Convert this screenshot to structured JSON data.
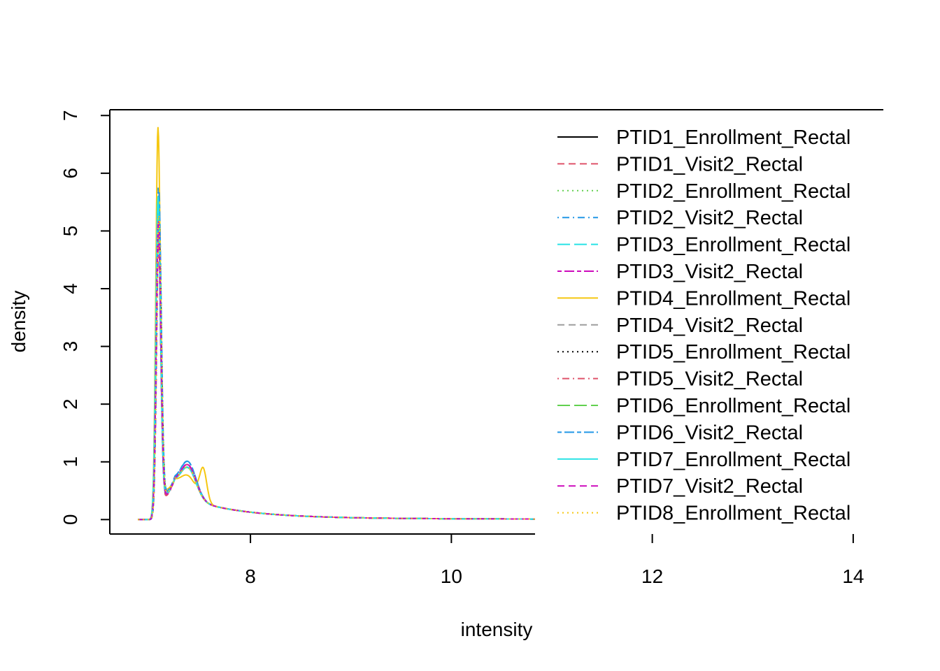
{
  "chart_data": {
    "type": "line",
    "title": "",
    "xlabel": "intensity",
    "ylabel": "density",
    "xlim": [
      6.6,
      14.3
    ],
    "ylim": [
      -0.25,
      7.1
    ],
    "x_ticks": [
      8,
      10,
      12,
      14
    ],
    "y_ticks": [
      0,
      1,
      2,
      3,
      4,
      5,
      6,
      7
    ],
    "x_tick_labels": [
      "8",
      "10",
      "12",
      "14"
    ],
    "y_tick_labels": [
      "0",
      "1",
      "2",
      "3",
      "4",
      "5",
      "6",
      "7"
    ],
    "legend_placement": "top-right",
    "series": [
      {
        "name": "PTID1_Enrollment_Rectal",
        "color": "#000000",
        "dash": "solid",
        "peak": 5.5,
        "shoulder": 0.5,
        "bump": 0
      },
      {
        "name": "PTID1_Visit2_Rectal",
        "color": "#DF536B",
        "dash": "dashed",
        "peak": 5.2,
        "shoulder": 0.55,
        "bump": 0
      },
      {
        "name": "PTID2_Enrollment_Rectal",
        "color": "#61D04F",
        "dash": "dotted",
        "peak": 5.6,
        "shoulder": 0.5,
        "bump": 0
      },
      {
        "name": "PTID2_Visit2_Rectal",
        "color": "#2297E6",
        "dash": "dotdash",
        "peak": 5.75,
        "shoulder": 0.6,
        "bump": 0
      },
      {
        "name": "PTID3_Enrollment_Rectal",
        "color": "#28E2E5",
        "dash": "longdash",
        "peak": 5.4,
        "shoulder": 0.5,
        "bump": 0
      },
      {
        "name": "PTID3_Visit2_Rectal",
        "color": "#CD0BBC",
        "dash": "twodash",
        "peak": 5.0,
        "shoulder": 0.55,
        "bump": 0
      },
      {
        "name": "PTID4_Enrollment_Rectal",
        "color": "#F5C710",
        "dash": "solid",
        "peak": 6.8,
        "shoulder": 0.35,
        "bump": 0.55
      },
      {
        "name": "PTID4_Visit2_Rectal",
        "color": "#9E9E9E",
        "dash": "dashed",
        "peak": 5.3,
        "shoulder": 0.5,
        "bump": 0
      },
      {
        "name": "PTID5_Enrollment_Rectal",
        "color": "#000000",
        "dash": "dotted",
        "peak": 5.4,
        "shoulder": 0.5,
        "bump": 0
      },
      {
        "name": "PTID5_Visit2_Rectal",
        "color": "#DF536B",
        "dash": "dotdash",
        "peak": 5.1,
        "shoulder": 0.55,
        "bump": 0
      },
      {
        "name": "PTID6_Enrollment_Rectal",
        "color": "#61D04F",
        "dash": "longdash",
        "peak": 5.5,
        "shoulder": 0.5,
        "bump": 0
      },
      {
        "name": "PTID6_Visit2_Rectal",
        "color": "#2297E6",
        "dash": "twodash",
        "peak": 5.7,
        "shoulder": 0.6,
        "bump": 0
      },
      {
        "name": "PTID7_Enrollment_Rectal",
        "color": "#28E2E5",
        "dash": "solid",
        "peak": 5.6,
        "shoulder": 0.5,
        "bump": 0
      },
      {
        "name": "PTID7_Visit2_Rectal",
        "color": "#CD0BBC",
        "dash": "dashed",
        "peak": 5.2,
        "shoulder": 0.55,
        "bump": 0
      },
      {
        "name": "PTID8_Enrollment_Rectal",
        "color": "#F5C710",
        "dash": "dotted",
        "peak": 5.3,
        "shoulder": 0.5,
        "bump": 0
      }
    ]
  }
}
